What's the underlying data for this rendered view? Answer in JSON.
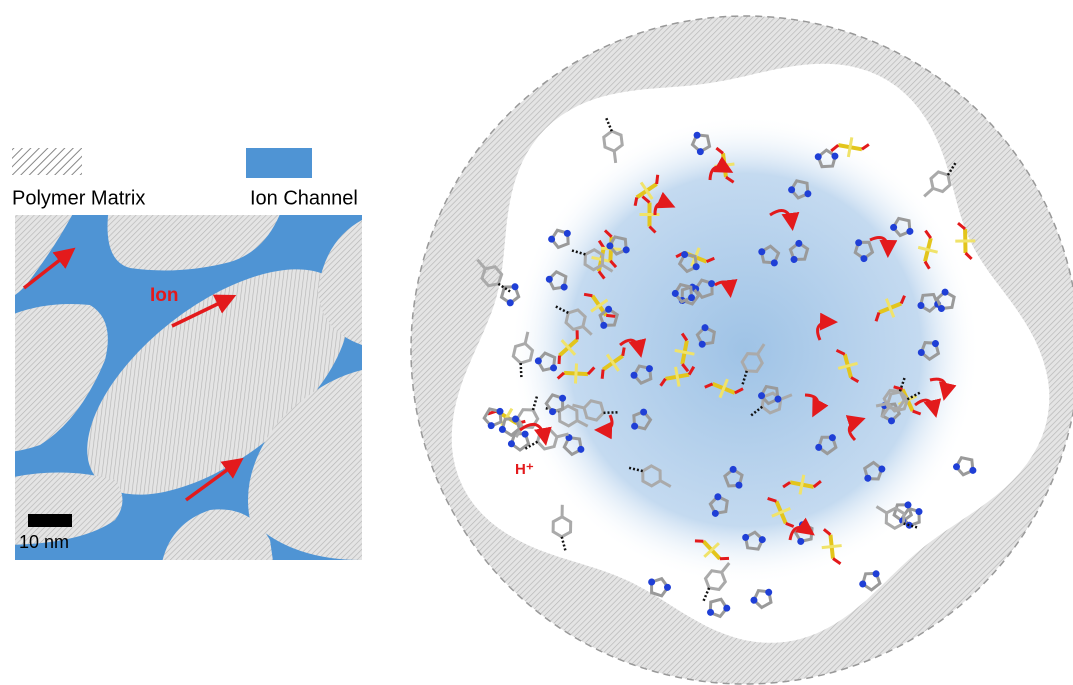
{
  "legend": {
    "matrix": "Polymer Matrix",
    "channel": "Ion Channel"
  },
  "left_panel": {
    "ion_label": "Ion",
    "scale_bar": "10 nm"
  },
  "right_panel": {
    "proton_label": "H⁺"
  }
}
